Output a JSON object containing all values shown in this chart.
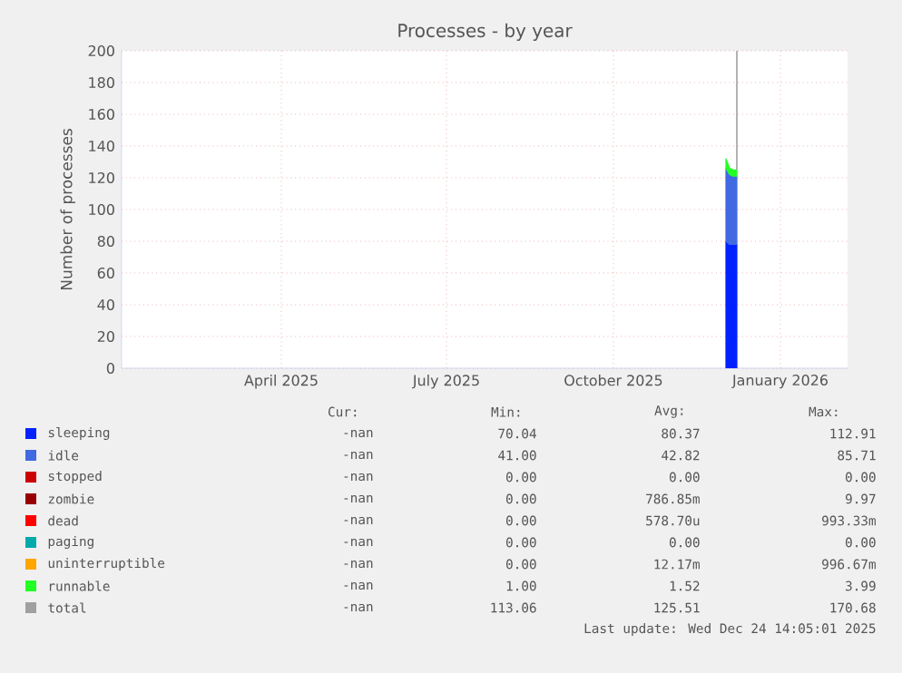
{
  "chart_data": {
    "type": "area",
    "stacked": true,
    "title": "Processes - by year",
    "ylabel": "Number of processes",
    "x": [
      "2025-12-02",
      "2025-12-04",
      "2025-12-06",
      "2025-12-08"
    ],
    "xlim": [
      "2025-01-03",
      "2026-02-07"
    ],
    "xticks": [
      {
        "value": "2025-04-01",
        "label": "April 2025"
      },
      {
        "value": "2025-07-01",
        "label": "July 2025"
      },
      {
        "value": "2025-10-01",
        "label": "October 2025"
      },
      {
        "value": "2026-01-01",
        "label": "January 2026"
      }
    ],
    "ylim": [
      0,
      200
    ],
    "yticks": [
      0,
      20,
      40,
      60,
      80,
      100,
      120,
      140,
      160,
      180,
      200
    ],
    "grid": true,
    "legend": "bottom",
    "series": [
      {
        "name": "sleeping",
        "color": "#0022ff",
        "values": [
          80,
          78,
          78,
          78
        ]
      },
      {
        "name": "idle",
        "color": "#4169e1",
        "values": [
          46,
          44,
          43,
          43
        ]
      },
      {
        "name": "stopped",
        "color": "#cc0000",
        "values": [
          null,
          null,
          null,
          null
        ]
      },
      {
        "name": "zombie",
        "color": "#990000",
        "values": [
          null,
          null,
          null,
          null
        ]
      },
      {
        "name": "dead",
        "color": "#ff0000",
        "values": [
          null,
          null,
          null,
          null
        ]
      },
      {
        "name": "paging",
        "color": "#00aaaa",
        "values": [
          null,
          null,
          null,
          null
        ]
      },
      {
        "name": "uninterruptible",
        "color": "#ffa500",
        "values": [
          null,
          null,
          null,
          null
        ]
      },
      {
        "name": "runnable",
        "color": "#22ff22",
        "values": [
          6,
          4,
          4,
          4
        ]
      },
      {
        "name": "total",
        "color": "#a0a0a0",
        "type": "line",
        "x": [
          "2025-12-08",
          "2025-12-08"
        ],
        "values": [
          125,
          200
        ]
      }
    ],
    "annotations": [
      "Cur:",
      "Min:",
      "Avg:",
      "Max:",
      "-nan",
      "70.04",
      "80.37",
      "112.91",
      "-nan",
      "41.00",
      "42.82",
      "85.71",
      "-nan",
      "0.00",
      "0.00",
      "0.00",
      "-nan",
      "0.00",
      "786.85m",
      "9.97",
      "-nan",
      "0.00",
      "578.70u",
      "993.33m",
      "-nan",
      "0.00",
      "0.00",
      "0.00",
      "-nan",
      "0.00",
      "12.17m",
      "996.67m",
      "-nan",
      "1.00",
      "1.52",
      "3.99",
      "-nan",
      "113.06",
      "125.51",
      "170.68",
      "Last update: Wed Dec 24 14:05:01 2025"
    ]
  }
}
